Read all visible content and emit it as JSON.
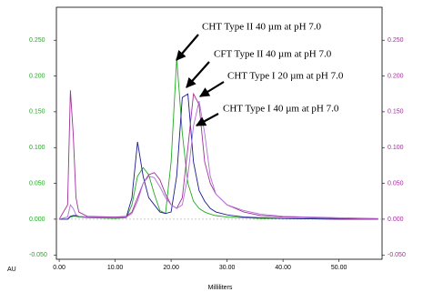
{
  "chart_data": {
    "type": "line",
    "x_label": "Milliliters",
    "y_label": "AU",
    "x": [
      0,
      1.5,
      2,
      2.5,
      3,
      3.5,
      5,
      10,
      12,
      13,
      14,
      15,
      16,
      17,
      18,
      19,
      20,
      21,
      22,
      23,
      24,
      25,
      26,
      27,
      28,
      30,
      33,
      36,
      40,
      50,
      57
    ],
    "series": [
      {
        "name": "CHT Type II 40 µm at pH 7.0",
        "color": "#22aa22",
        "values": [
          0,
          0,
          0.003,
          0.004,
          0.004,
          0.003,
          0.002,
          0.001,
          0.002,
          0.02,
          0.06,
          0.072,
          0.062,
          0.035,
          0.012,
          0.008,
          0.08,
          0.225,
          0.12,
          0.05,
          0.025,
          0.015,
          0.01,
          0.007,
          0.005,
          0.003,
          0.002,
          0.001,
          0.001,
          0,
          0
        ]
      },
      {
        "name": "CFT Type II 40 µm at pH 7.0",
        "color": "#1c1c90",
        "values": [
          0,
          0,
          0.004,
          0.005,
          0.005,
          0.004,
          0.003,
          0.002,
          0.003,
          0.03,
          0.108,
          0.06,
          0.03,
          0.02,
          0.01,
          0.008,
          0.01,
          0.06,
          0.17,
          0.175,
          0.08,
          0.04,
          0.025,
          0.015,
          0.01,
          0.006,
          0.003,
          0.002,
          0.001,
          0,
          0
        ]
      },
      {
        "name": "CHT Type I 20 µm at pH 7.0",
        "color": "#a0309a",
        "values": [
          0,
          0.02,
          0.18,
          0.12,
          0.03,
          0.01,
          0.004,
          0.003,
          0.004,
          0.01,
          0.03,
          0.05,
          0.062,
          0.065,
          0.055,
          0.035,
          0.02,
          0.015,
          0.03,
          0.1,
          0.175,
          0.16,
          0.08,
          0.05,
          0.035,
          0.02,
          0.01,
          0.005,
          0.003,
          0.001,
          0
        ]
      },
      {
        "name": "CHT Type I 40 µm at pH 7.0",
        "color": "#b070d8",
        "values": [
          0,
          0.003,
          0.02,
          0.015,
          0.006,
          0.004,
          0.003,
          0.002,
          0.003,
          0.008,
          0.025,
          0.05,
          0.06,
          0.058,
          0.045,
          0.03,
          0.02,
          0.015,
          0.02,
          0.06,
          0.13,
          0.165,
          0.12,
          0.06,
          0.035,
          0.02,
          0.012,
          0.007,
          0.004,
          0.002,
          0.001
        ]
      }
    ],
    "xlim": [
      -0.5,
      57.7
    ],
    "ylim": [
      -0.056,
      0.296
    ],
    "y2lim": [
      -0.056,
      0.296
    ],
    "xticks": [
      {
        "value": 0,
        "label": "0.00"
      },
      {
        "value": 10,
        "label": "10.00"
      },
      {
        "value": 20,
        "label": "20.00"
      },
      {
        "value": 30,
        "label": "30.00"
      },
      {
        "value": 40,
        "label": "40.00"
      },
      {
        "value": 50,
        "label": "50.00"
      }
    ],
    "yticks": [
      {
        "value": -0.05,
        "label": "-0.050"
      },
      {
        "value": 0,
        "label": "0.000"
      },
      {
        "value": 0.05,
        "label": "0.050"
      },
      {
        "value": 0.1,
        "label": "0.100"
      },
      {
        "value": 0.15,
        "label": "0.150"
      },
      {
        "value": 0.2,
        "label": "0.200"
      },
      {
        "value": 0.25,
        "label": "0.250"
      }
    ],
    "y2ticks": [
      {
        "value": -0.05,
        "label": "-0.050"
      },
      {
        "value": 0,
        "label": "0.000"
      },
      {
        "value": 0.05,
        "label": "0.050"
      },
      {
        "value": 0.1,
        "label": "0.100"
      },
      {
        "value": 0.15,
        "label": "0.150"
      },
      {
        "value": 0.2,
        "label": "0.200"
      },
      {
        "value": 0.25,
        "label": "0.250"
      }
    ],
    "ytick_color": "#22aa22",
    "y2tick_color": "#a0309a"
  }
}
